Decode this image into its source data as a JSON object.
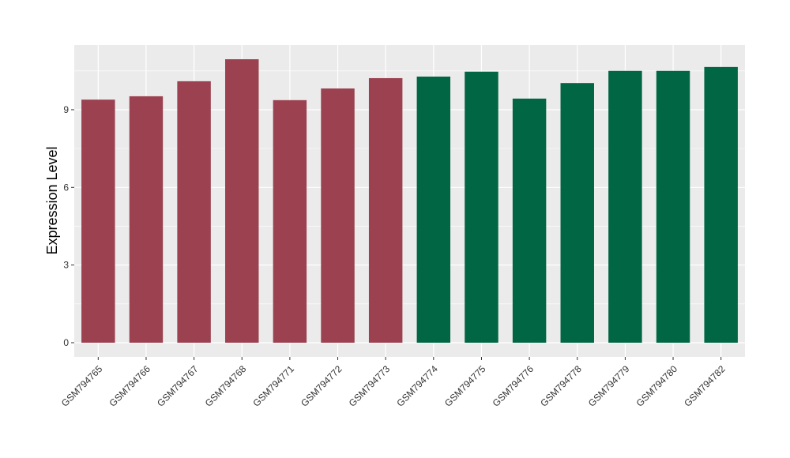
{
  "chart_data": {
    "type": "bar",
    "title": "",
    "xlabel": "",
    "ylabel": "Expression Level",
    "categories": [
      "GSM794765",
      "GSM794766",
      "GSM794767",
      "GSM794768",
      "GSM794771",
      "GSM794772",
      "GSM794773",
      "GSM794774",
      "GSM794775",
      "GSM794776",
      "GSM794778",
      "GSM794779",
      "GSM794780",
      "GSM794782"
    ],
    "values": [
      9.39,
      9.52,
      10.1,
      10.95,
      9.37,
      9.82,
      10.22,
      10.28,
      10.47,
      9.43,
      10.03,
      10.5,
      10.5,
      10.65
    ],
    "group_colors": [
      "#9b4150",
      "#9b4150",
      "#9b4150",
      "#9b4150",
      "#9b4150",
      "#9b4150",
      "#9b4150",
      "#006643",
      "#006643",
      "#006643",
      "#006643",
      "#006643",
      "#006643",
      "#006643"
    ],
    "y_ticks": [
      0,
      3,
      6,
      9
    ],
    "y_tick_labels": [
      "0",
      "3",
      "6",
      "9"
    ],
    "ylim": [
      -0.55,
      11.5
    ],
    "grid": true,
    "panel_background": "#ebebeb",
    "grid_color": "#ffffff"
  }
}
